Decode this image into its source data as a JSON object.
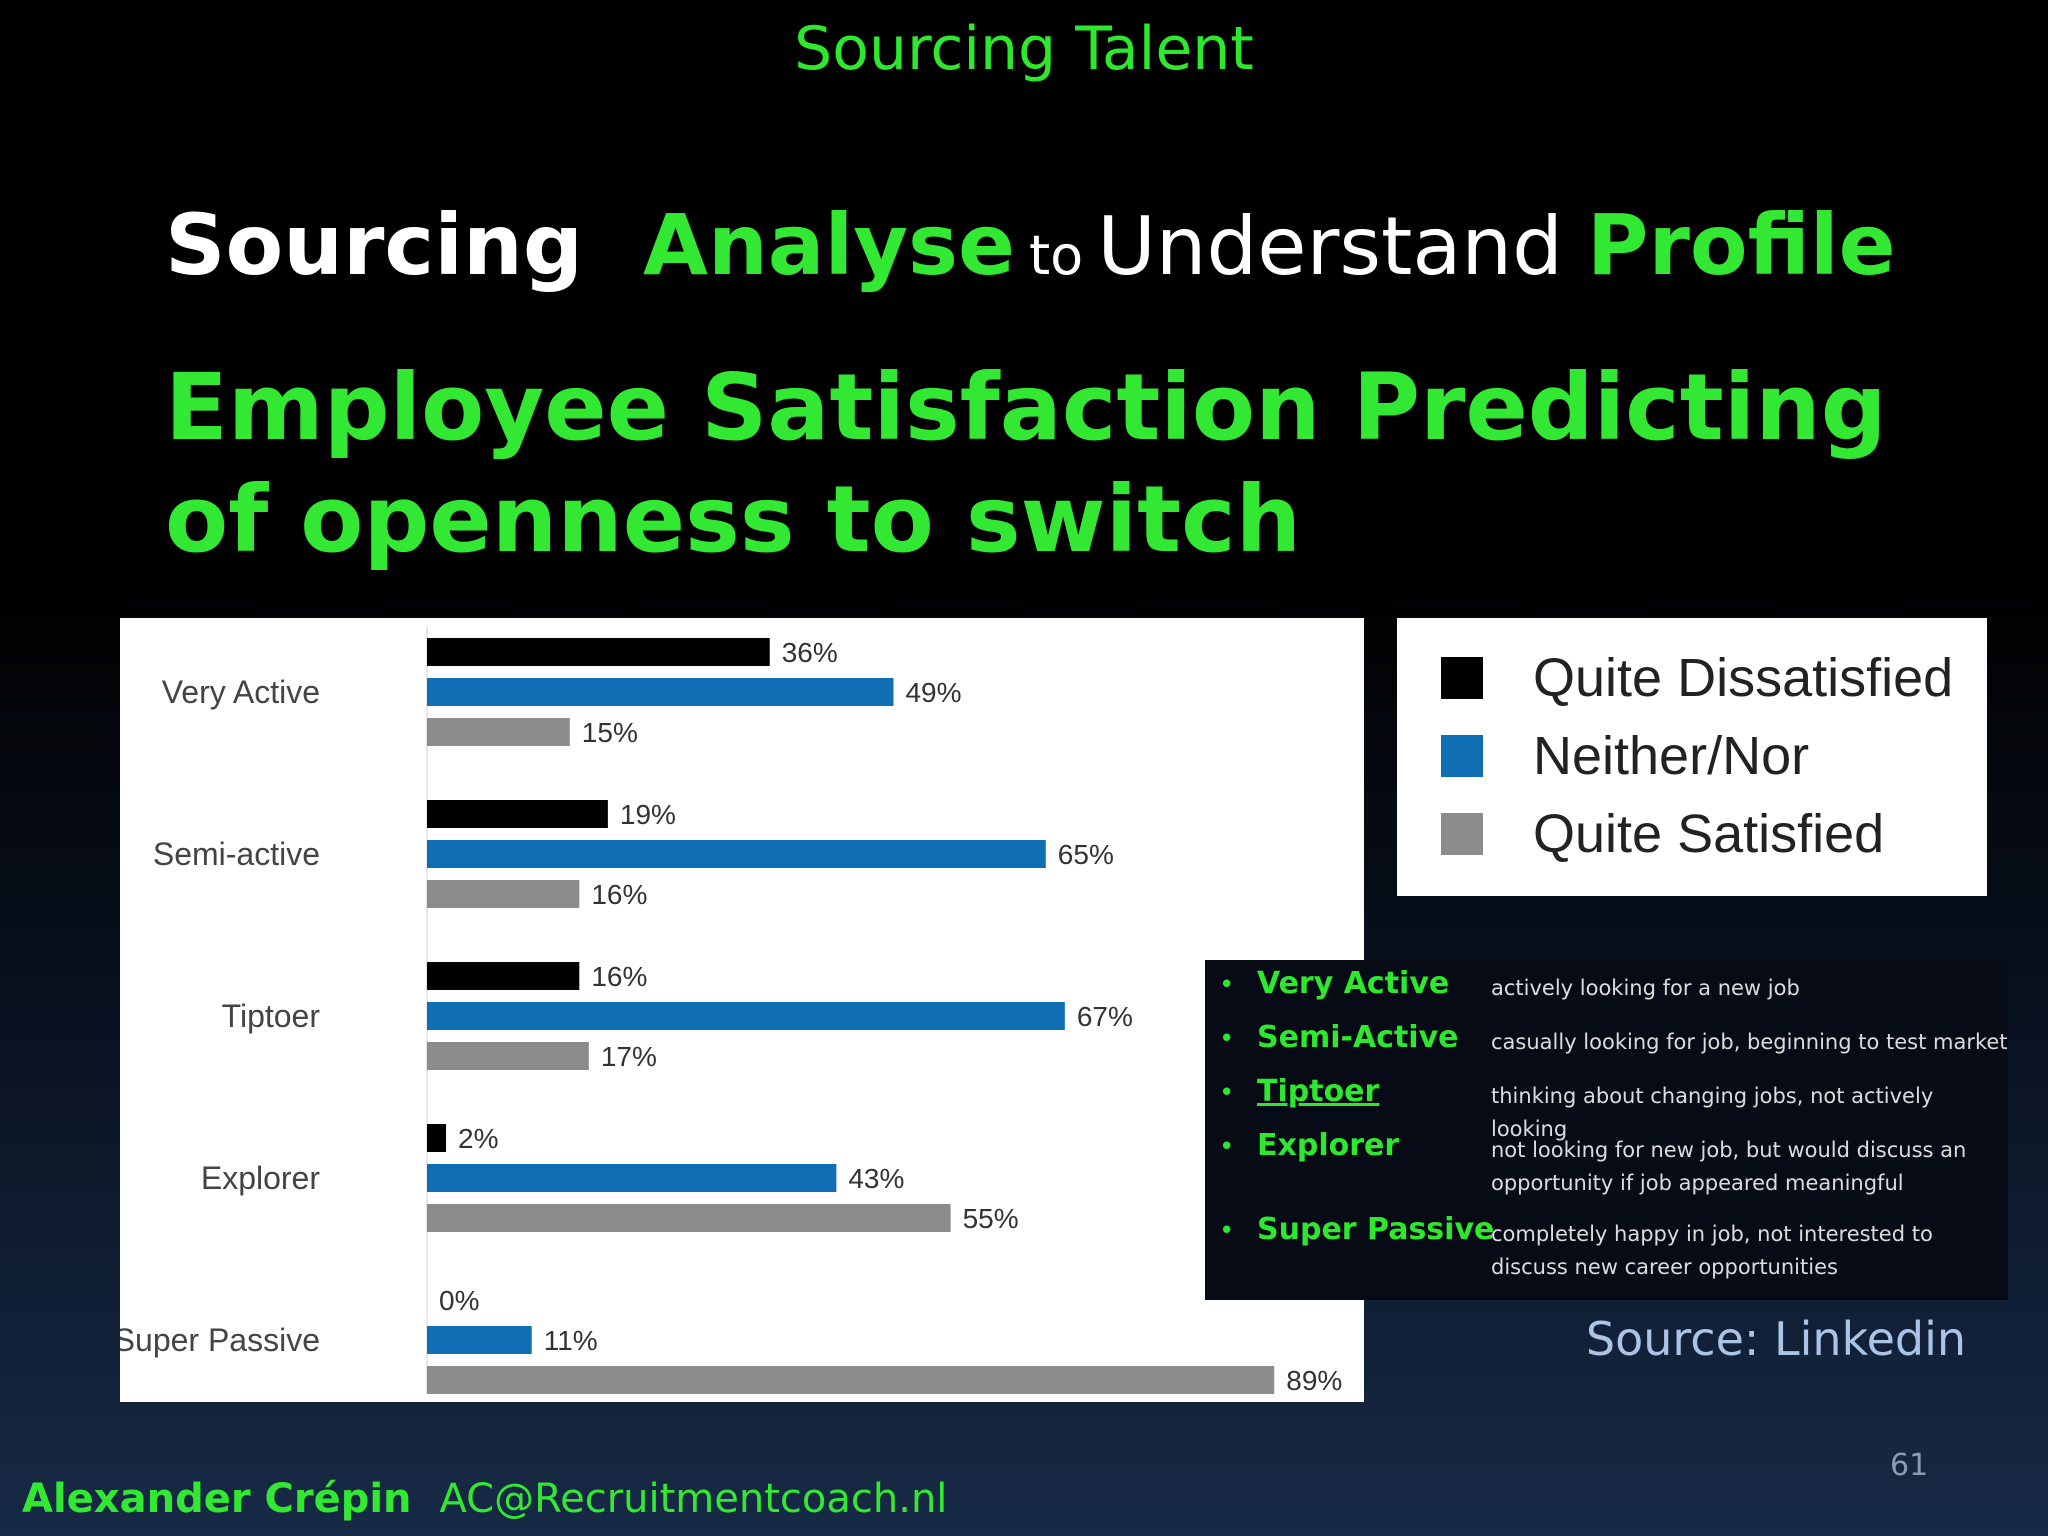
{
  "header": {
    "top_label": "Sourcing Talent"
  },
  "headline": {
    "word1": "Sourcing",
    "word2": "Analyse",
    "word3": "to",
    "word4": "Understand",
    "word5": "Profile"
  },
  "main_title": "Employee Satisfaction Predicting of openness to switch",
  "chart_data": {
    "type": "bar",
    "orientation": "horizontal",
    "categories": [
      "Very Active",
      "Semi-active",
      "Tiptoer",
      "Explorer",
      "Super Passive"
    ],
    "series": [
      {
        "name": "Quite Dissatisfied",
        "color": "#000000",
        "values": [
          36,
          19,
          16,
          2,
          0
        ],
        "labels": [
          "36%",
          "19%",
          "16%",
          "2%",
          "0%"
        ]
      },
      {
        "name": "Neither/Nor",
        "color": "#0f6eb4",
        "values": [
          49,
          65,
          67,
          43,
          11
        ],
        "labels": [
          "49%",
          "65%",
          "67%",
          "43%",
          "11%"
        ]
      },
      {
        "name": "Quite Satisfied",
        "color": "#8c8c8c",
        "values": [
          15,
          16,
          17,
          55,
          89
        ],
        "labels": [
          "15%",
          "16%",
          "17%",
          "55%",
          "89%"
        ]
      }
    ],
    "xlim": [
      0,
      100
    ],
    "grid": false,
    "legend_position": "right"
  },
  "definitions": [
    {
      "term": "Very Active",
      "desc": "actively looking for a new job",
      "underline": false
    },
    {
      "term": "Semi-Active",
      "desc": "casually looking for job, beginning to test market",
      "underline": false
    },
    {
      "term": "Tiptoer",
      "desc": "thinking about changing jobs, not actively looking",
      "underline": true
    },
    {
      "term": "Explorer",
      "desc": "not looking for new job, but would discuss an opportunity if job appeared meaningful",
      "underline": false
    },
    {
      "term": "Super Passive",
      "desc": "completely happy in job, not interested to discuss new career opportunities",
      "underline": false
    }
  ],
  "source": "Source: Linkedin",
  "page_number": "61",
  "footer": {
    "author": "Alexander Crépin",
    "email": "AC@Recruitmentcoach.nl"
  }
}
